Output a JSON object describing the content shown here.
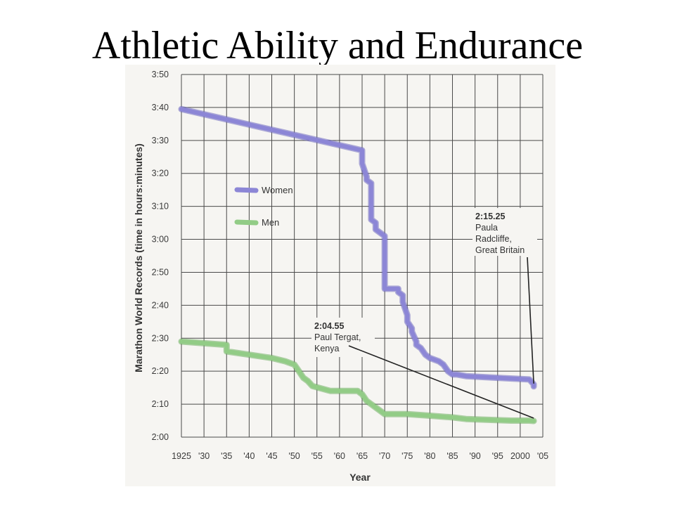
{
  "slide": {
    "title": "Athletic Ability and Endurance"
  },
  "colors": {
    "women": "#8c86d6",
    "women_edge": "#6e68bf",
    "men": "#92cc86",
    "men_edge": "#6fae63",
    "grid": "#4a4a4a",
    "panel": "#f6f5f2"
  },
  "chart_data": {
    "type": "line",
    "xlabel": "Year",
    "ylabel": "Marathon World Records (time in hours:minutes)",
    "xlim": [
      1925,
      2005
    ],
    "ylim": [
      120,
      230
    ],
    "grid": true,
    "legend_placement": "left",
    "x_ticks": [
      {
        "value": 1925,
        "label": "1925"
      },
      {
        "value": 1930,
        "label": "'30"
      },
      {
        "value": 1935,
        "label": "'35"
      },
      {
        "value": 1940,
        "label": "'40"
      },
      {
        "value": 1945,
        "label": "'45"
      },
      {
        "value": 1950,
        "label": "'50"
      },
      {
        "value": 1955,
        "label": "'55"
      },
      {
        "value": 1960,
        "label": "'60"
      },
      {
        "value": 1965,
        "label": "'65"
      },
      {
        "value": 1970,
        "label": "'70"
      },
      {
        "value": 1975,
        "label": "'75"
      },
      {
        "value": 1980,
        "label": "'80"
      },
      {
        "value": 1985,
        "label": "'85"
      },
      {
        "value": 1990,
        "label": "'90"
      },
      {
        "value": 1995,
        "label": "'95"
      },
      {
        "value": 2000,
        "label": "2000"
      },
      {
        "value": 2005,
        "label": "'05"
      }
    ],
    "y_ticks": [
      {
        "value": 120,
        "label": "2:00"
      },
      {
        "value": 130,
        "label": "2:10"
      },
      {
        "value": 140,
        "label": "2:20"
      },
      {
        "value": 150,
        "label": "2:30"
      },
      {
        "value": 160,
        "label": "2:40"
      },
      {
        "value": 170,
        "label": "2:50"
      },
      {
        "value": 180,
        "label": "3:00"
      },
      {
        "value": 190,
        "label": "3:10"
      },
      {
        "value": 200,
        "label": "3:20"
      },
      {
        "value": 210,
        "label": "3:30"
      },
      {
        "value": 220,
        "label": "3:40"
      },
      {
        "value": 230,
        "label": "3:50"
      }
    ],
    "series": [
      {
        "name": "Women",
        "x": [
          1925,
          1965,
          1965,
          1966,
          1966,
          1967,
          1967,
          1968,
          1968,
          1970,
          1970,
          1970,
          1970,
          1973,
          1973,
          1974,
          1974,
          1975,
          1975,
          1976,
          1976,
          1977,
          1977,
          1978,
          1979,
          1980,
          1982,
          1983,
          1984,
          1985,
          1986,
          1988,
          1995,
          2002,
          2003,
          2003
        ],
        "y": [
          219.5,
          207,
          203,
          199,
          198,
          197,
          186,
          185,
          183,
          181,
          180,
          166,
          165,
          165,
          164,
          163,
          161,
          157,
          155,
          153,
          152,
          149,
          148,
          147,
          145,
          144,
          143,
          142,
          140,
          139,
          139,
          138.5,
          138,
          137.5,
          136,
          135.4
        ]
      },
      {
        "name": "Men",
        "x": [
          1925,
          1935,
          1935,
          1945,
          1948,
          1950,
          1951,
          1952,
          1953,
          1954,
          1958,
          1964,
          1965,
          1966,
          1967,
          1969,
          1970,
          1975,
          1980,
          1985,
          1988,
          1998,
          2002,
          2003
        ],
        "y": [
          149,
          148,
          146,
          144,
          143,
          142,
          140,
          138,
          137,
          135.5,
          134,
          134,
          133,
          131,
          130,
          128,
          127,
          127,
          126.5,
          126,
          125.5,
          125,
          125,
          124.9
        ]
      }
    ],
    "annotations": [
      {
        "title": "2:15.25",
        "lines": [
          "Paula",
          "Radcliffe,",
          "Great Britain"
        ],
        "points_to": {
          "x": 2003,
          "y": 135.4
        }
      },
      {
        "title": "2:04.55",
        "lines": [
          "Paul Tergat,",
          "Kenya"
        ],
        "points_to": {
          "x": 2003,
          "y": 124.9
        }
      }
    ]
  }
}
